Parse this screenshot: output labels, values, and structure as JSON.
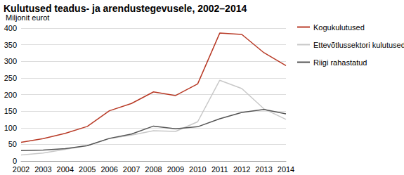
{
  "chart_data": {
    "type": "line",
    "title": "Kulutused teadus- ja arendustegevusele, 2002–2014",
    "y_label": "Miljonit eurot",
    "categories": [
      "2002",
      "2003",
      "2004",
      "2005",
      "2006",
      "2007",
      "2008",
      "2009",
      "2010",
      "2011",
      "2012",
      "2013",
      "2014"
    ],
    "series": [
      {
        "name": "Kogukulutused",
        "color": "#b83a26",
        "values": [
          56,
          67,
          83,
          104,
          151,
          173,
          208,
          197,
          232,
          385,
          381,
          326,
          287
        ]
      },
      {
        "name": "Ettevõtlussektori kulutused",
        "color": "#c8c8c8",
        "values": [
          18,
          24,
          35,
          46,
          67,
          78,
          91,
          89,
          118,
          243,
          218,
          157,
          125
        ]
      },
      {
        "name": "Riigi rahastatud",
        "color": "#555555",
        "values": [
          31,
          33,
          37,
          46,
          68,
          81,
          105,
          97,
          103,
          127,
          146,
          155,
          142
        ]
      }
    ],
    "ylim": [
      0,
      400
    ],
    "yticks": [
      0,
      50,
      100,
      150,
      200,
      250,
      300,
      350,
      400
    ],
    "grid": true,
    "legend": "right"
  }
}
